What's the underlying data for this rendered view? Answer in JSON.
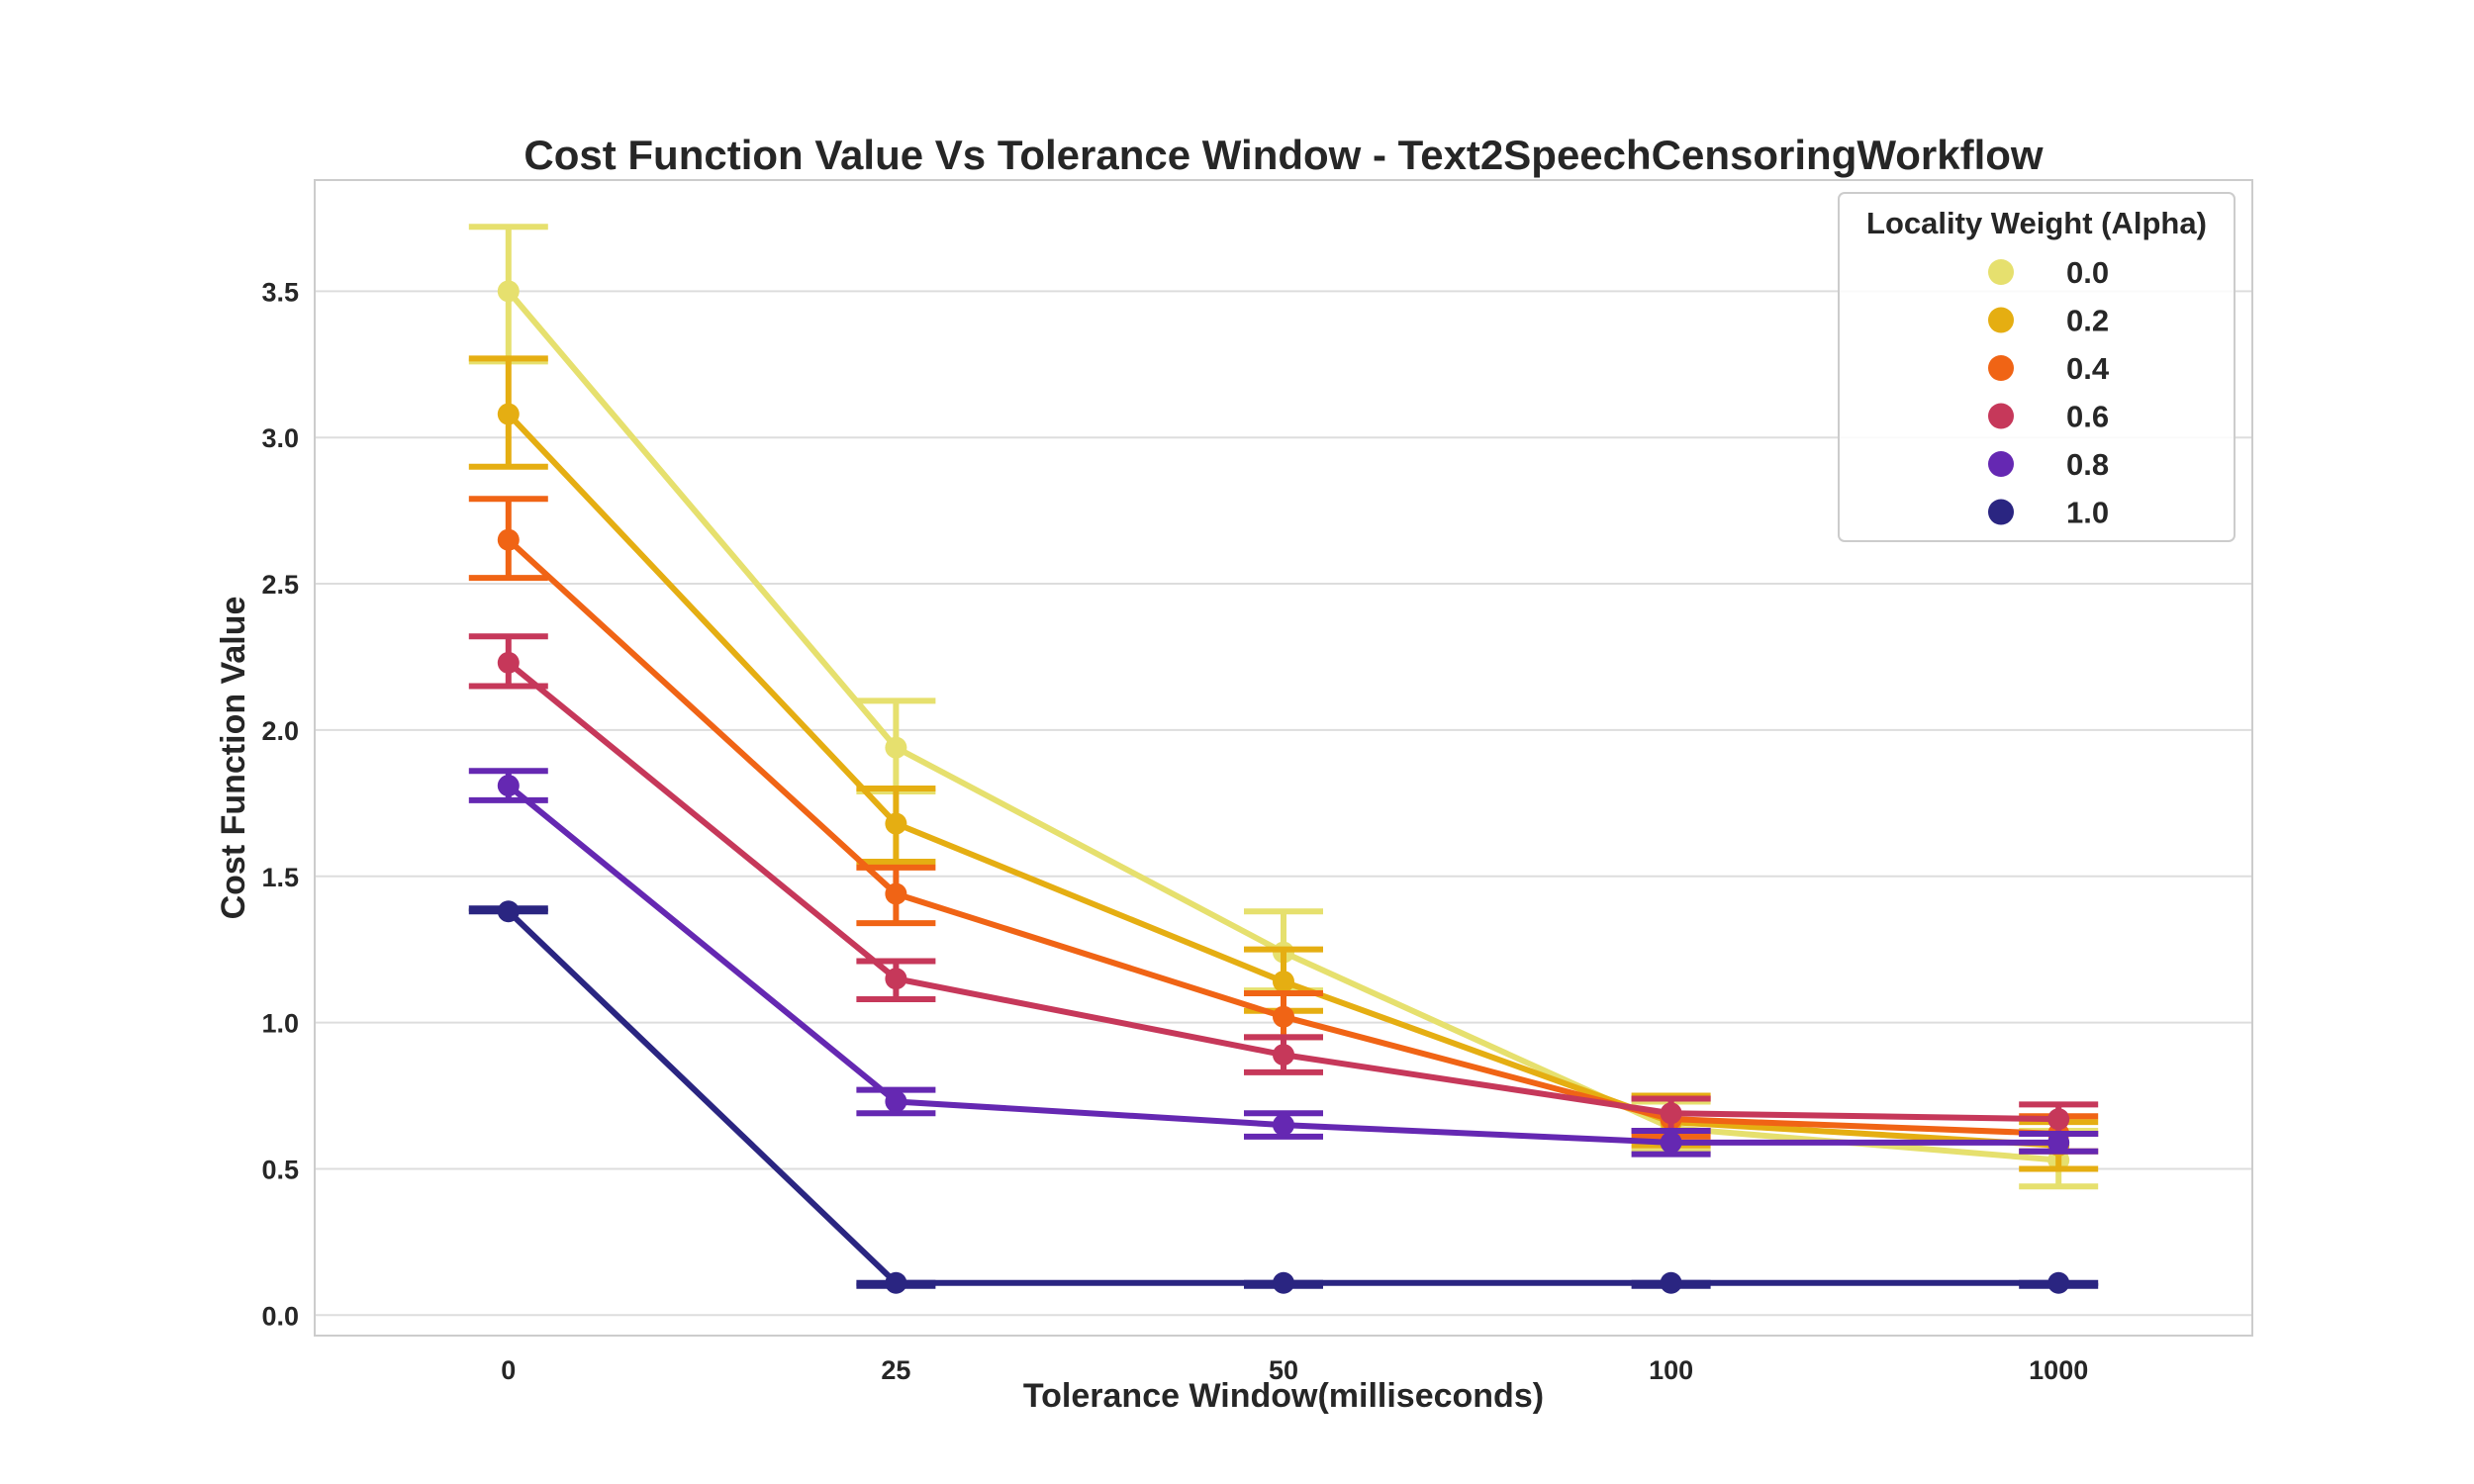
{
  "chart_data": {
    "type": "line",
    "title": "Cost Function Value Vs Tolerance Window - Text2SpeechCensoringWorkflow",
    "xlabel": "Tolerance Window(milliseconds)",
    "ylabel": "Cost Function Value",
    "categories": [
      "0",
      "25",
      "50",
      "100",
      "1000"
    ],
    "ylim": [
      -0.07,
      3.88
    ],
    "yticks": [
      "0.0",
      "0.5",
      "1.0",
      "1.5",
      "2.0",
      "2.5",
      "3.0",
      "3.5"
    ],
    "grid": "horizontal",
    "legend": {
      "title": "Locality Weight (Alpha)",
      "placement": "top-right"
    },
    "series": [
      {
        "name": "0.0",
        "color": "#e6e06e",
        "values": [
          3.5,
          1.94,
          1.24,
          0.64,
          0.53
        ],
        "err_low": [
          3.26,
          1.79,
          1.11,
          0.56,
          0.44
        ],
        "err_high": [
          3.72,
          2.1,
          1.38,
          0.73,
          0.63
        ]
      },
      {
        "name": "0.2",
        "color": "#e5ae12",
        "values": [
          3.08,
          1.68,
          1.14,
          0.66,
          0.58
        ],
        "err_low": [
          2.9,
          1.55,
          1.04,
          0.58,
          0.5
        ],
        "err_high": [
          3.27,
          1.8,
          1.25,
          0.75,
          0.66
        ]
      },
      {
        "name": "0.4",
        "color": "#f06415",
        "values": [
          2.65,
          1.44,
          1.02,
          0.67,
          0.62
        ],
        "err_low": [
          2.52,
          1.34,
          0.95,
          0.61,
          0.56
        ],
        "err_high": [
          2.79,
          1.53,
          1.1,
          0.74,
          0.68
        ]
      },
      {
        "name": "0.6",
        "color": "#c6385a",
        "values": [
          2.23,
          1.15,
          0.89,
          0.69,
          0.67
        ],
        "err_low": [
          2.15,
          1.08,
          0.83,
          0.63,
          0.62
        ],
        "err_high": [
          2.32,
          1.21,
          0.95,
          0.74,
          0.72
        ]
      },
      {
        "name": "0.8",
        "color": "#6528b2",
        "values": [
          1.81,
          0.73,
          0.65,
          0.59,
          0.59
        ],
        "err_low": [
          1.76,
          0.69,
          0.61,
          0.55,
          0.56
        ],
        "err_high": [
          1.86,
          0.77,
          0.69,
          0.63,
          0.62
        ]
      },
      {
        "name": "1.0",
        "color": "#2a2581",
        "values": [
          1.38,
          0.11,
          0.11,
          0.11,
          0.11
        ],
        "err_low": [
          1.38,
          0.1,
          0.1,
          0.1,
          0.1
        ],
        "err_high": [
          1.39,
          0.11,
          0.11,
          0.11,
          0.11
        ]
      }
    ]
  }
}
